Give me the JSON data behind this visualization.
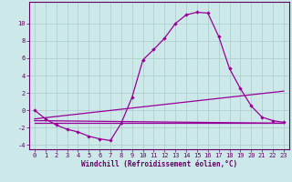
{
  "title": "",
  "xlabel": "Windchill (Refroidissement éolien,°C)",
  "ylabel": "",
  "background_color": "#cce8e8",
  "grid_color": "#aacccc",
  "line_color": "#990099",
  "xlim": [
    -0.5,
    23.5
  ],
  "ylim": [
    -4.5,
    12.5
  ],
  "xticks": [
    0,
    1,
    2,
    3,
    4,
    5,
    6,
    7,
    8,
    9,
    10,
    11,
    12,
    13,
    14,
    15,
    16,
    17,
    18,
    19,
    20,
    21,
    22,
    23
  ],
  "yticks": [
    -4,
    -2,
    0,
    2,
    4,
    6,
    8,
    10
  ],
  "curve1_x": [
    0,
    1,
    2,
    3,
    4,
    5,
    6,
    7,
    8,
    9,
    10,
    11,
    12,
    13,
    14,
    15,
    16,
    17,
    18,
    19,
    20,
    21,
    22,
    23
  ],
  "curve1_y": [
    0,
    -1,
    -1.7,
    -2.2,
    -2.5,
    -3,
    -3.3,
    -3.5,
    -1.5,
    1.5,
    5.8,
    7,
    8.3,
    10,
    11,
    11.3,
    11.2,
    8.5,
    4.8,
    2.5,
    0.5,
    -0.8,
    -1.2,
    -1.4
  ],
  "curve2_x": [
    0,
    23
  ],
  "curve2_y": [
    -1.0,
    2.2
  ],
  "curve3_x": [
    0,
    23
  ],
  "curve3_y": [
    -1.2,
    -1.5
  ],
  "curve4_x": [
    0,
    23
  ],
  "curve4_y": [
    -1.5,
    -1.5
  ],
  "tick_fontsize": 5.0,
  "xlabel_fontsize": 5.5
}
